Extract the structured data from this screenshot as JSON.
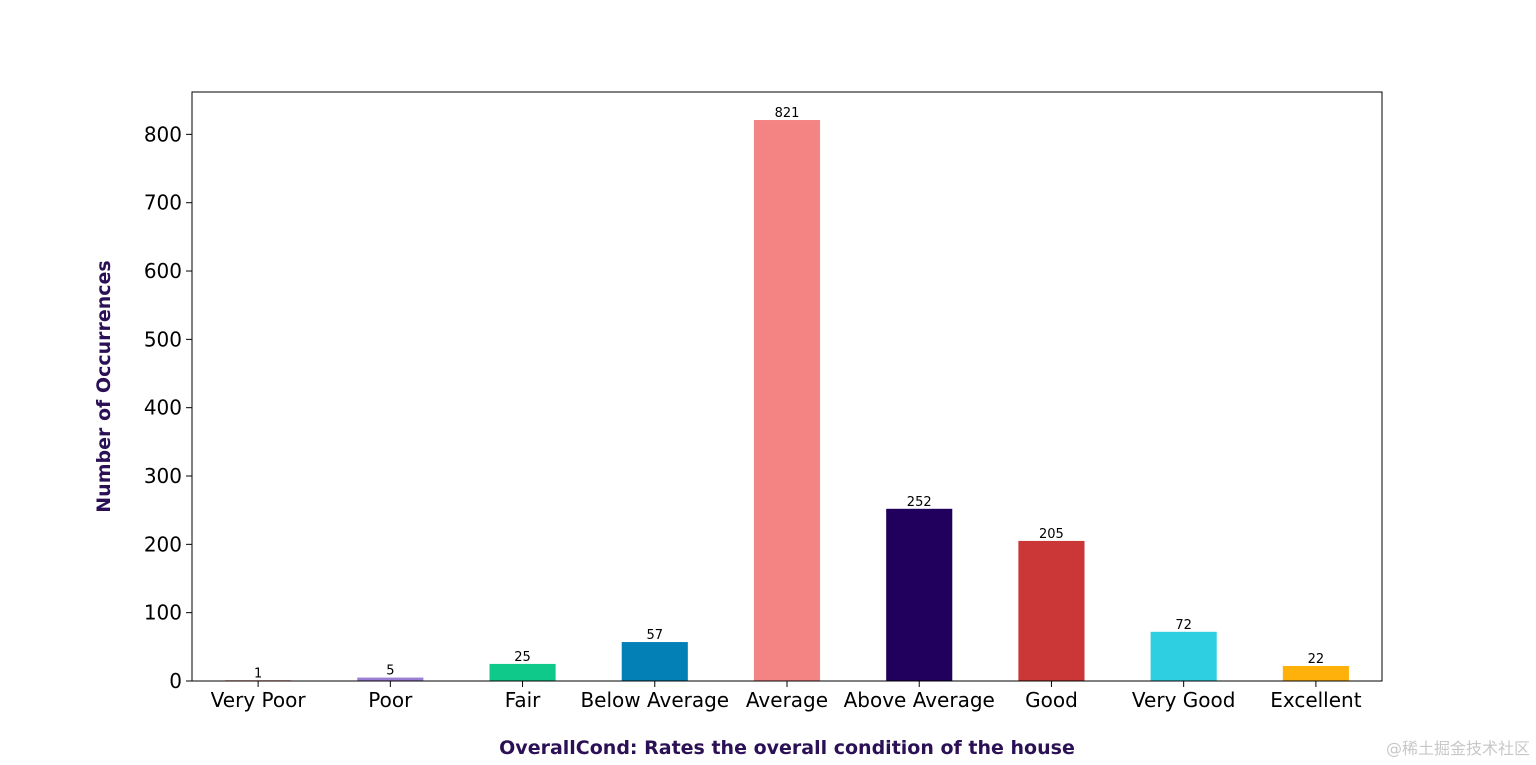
{
  "chart_data": {
    "type": "bar",
    "categories": [
      "Very Poor",
      "Poor",
      "Fair",
      "Below Average",
      "Average",
      "Above Average",
      "Good",
      "Very Good",
      "Excellent"
    ],
    "values": [
      1,
      5,
      25,
      57,
      821,
      252,
      205,
      72,
      22
    ],
    "colors": [
      "#c0392b",
      "#9b7fd4",
      "#0fc98a",
      "#0380b5",
      "#f48484",
      "#21005d",
      "#cb3636",
      "#2ecfe0",
      "#fdb10a"
    ],
    "xlabel": "OverallCond: Rates the overall condition of the house",
    "ylabel": "Number of Occurrences",
    "label_color": "#2b1055",
    "ylim": [
      0,
      862
    ],
    "yticks": [
      0,
      100,
      200,
      300,
      400,
      500,
      600,
      700,
      800
    ],
    "grid": false,
    "legend": "none"
  },
  "watermark": "@稀土掘金技术社区"
}
